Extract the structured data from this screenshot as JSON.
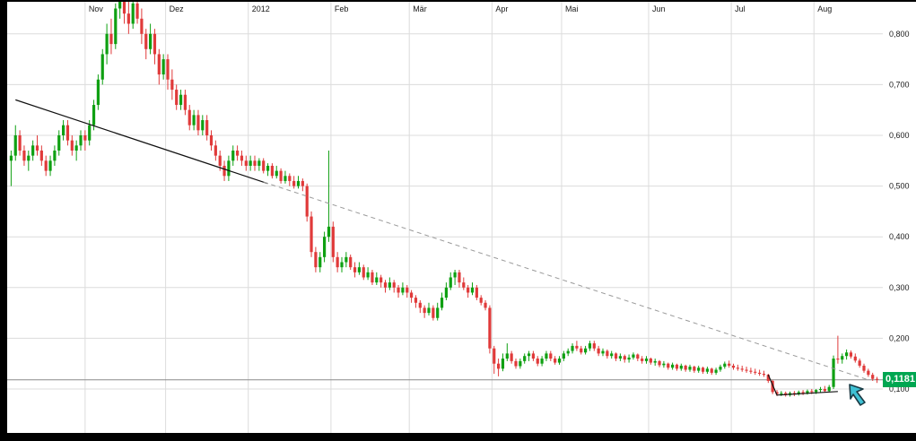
{
  "chart_data": {
    "type": "candlestick",
    "title": "",
    "xlabel": "",
    "ylabel": "",
    "grid": true,
    "legend": false,
    "y_axis": {
      "side": "right",
      "min": 0.015,
      "max": 0.865,
      "ticks": [
        0.1,
        0.2,
        0.3,
        0.4,
        0.5,
        0.6,
        0.7,
        0.8
      ],
      "tick_labels": [
        "0,100",
        "0,200",
        "0,300",
        "0,400",
        "0,500",
        "0,600",
        "0,700",
        "0,800"
      ]
    },
    "x_axis": {
      "labels": [
        {
          "label": "Nov",
          "index": 17.5
        },
        {
          "label": "Dez",
          "index": 36
        },
        {
          "label": "2012",
          "index": 55
        },
        {
          "label": "Feb",
          "index": 74
        },
        {
          "label": "Mär",
          "index": 92
        },
        {
          "label": "Apr",
          "index": 111
        },
        {
          "label": "Mai",
          "index": 127
        },
        {
          "label": "Jun",
          "index": 147
        },
        {
          "label": "Jul",
          "index": 166
        },
        {
          "label": "Aug",
          "index": 185
        }
      ]
    },
    "last_price": 0.1181,
    "last_price_label": "0,1181",
    "colors": {
      "up": "#0fa012",
      "down": "#e03a3a",
      "grid": "#dcdcdc",
      "trend_solid": "#111111",
      "trend_dashed": "#9a9a9a",
      "price_line": "#8a8a8a",
      "tag_bg": "#00a651",
      "label_text": "#1a1a1a",
      "cursor_fill": "#3fc1d4",
      "cursor_stroke": "#1a3a44"
    },
    "trendlines": [
      {
        "name": "downtrend-solid",
        "style": "solid",
        "color": "#111111",
        "width": 1.2,
        "points": [
          [
            1,
            0.67
          ],
          [
            59,
            0.505
          ]
        ]
      },
      {
        "name": "downtrend-dashed",
        "style": "dashed",
        "color": "#9a9a9a",
        "width": 1,
        "points": [
          [
            58,
            0.508
          ],
          [
            197,
            0.118
          ]
        ]
      },
      {
        "name": "support-small",
        "style": "solid",
        "color": "#111111",
        "width": 1.2,
        "points": [
          [
            174,
            0.128
          ],
          [
            176,
            0.088
          ],
          [
            190,
            0.095
          ]
        ]
      }
    ],
    "candles": [
      [
        0.55,
        0.57,
        0.5,
        0.56
      ],
      [
        0.56,
        0.62,
        0.55,
        0.6
      ],
      [
        0.6,
        0.61,
        0.56,
        0.57
      ],
      [
        0.57,
        0.58,
        0.54,
        0.55
      ],
      [
        0.55,
        0.57,
        0.53,
        0.56
      ],
      [
        0.56,
        0.59,
        0.55,
        0.58
      ],
      [
        0.58,
        0.6,
        0.56,
        0.57
      ],
      [
        0.57,
        0.58,
        0.54,
        0.55
      ],
      [
        0.55,
        0.56,
        0.52,
        0.53
      ],
      [
        0.53,
        0.56,
        0.52,
        0.55
      ],
      [
        0.55,
        0.58,
        0.54,
        0.57
      ],
      [
        0.57,
        0.61,
        0.56,
        0.6
      ],
      [
        0.6,
        0.63,
        0.59,
        0.62
      ],
      [
        0.62,
        0.63,
        0.58,
        0.59
      ],
      [
        0.59,
        0.6,
        0.56,
        0.57
      ],
      [
        0.57,
        0.59,
        0.55,
        0.58
      ],
      [
        0.58,
        0.61,
        0.57,
        0.6
      ],
      [
        0.6,
        0.61,
        0.57,
        0.59
      ],
      [
        0.59,
        0.63,
        0.58,
        0.62
      ],
      [
        0.62,
        0.67,
        0.61,
        0.66
      ],
      [
        0.66,
        0.72,
        0.65,
        0.71
      ],
      [
        0.71,
        0.77,
        0.7,
        0.76
      ],
      [
        0.76,
        0.82,
        0.74,
        0.8
      ],
      [
        0.8,
        0.83,
        0.76,
        0.78
      ],
      [
        0.78,
        0.86,
        0.77,
        0.85
      ],
      [
        0.85,
        0.9,
        0.83,
        0.88
      ],
      [
        0.88,
        0.89,
        0.82,
        0.84
      ],
      [
        0.84,
        0.87,
        0.8,
        0.82
      ],
      [
        0.82,
        0.88,
        0.81,
        0.86
      ],
      [
        0.86,
        0.88,
        0.82,
        0.83
      ],
      [
        0.83,
        0.85,
        0.78,
        0.8
      ],
      [
        0.8,
        0.81,
        0.75,
        0.77
      ],
      [
        0.77,
        0.82,
        0.76,
        0.8
      ],
      [
        0.8,
        0.81,
        0.74,
        0.76
      ],
      [
        0.76,
        0.77,
        0.7,
        0.72
      ],
      [
        0.72,
        0.76,
        0.71,
        0.75
      ],
      [
        0.75,
        0.76,
        0.69,
        0.71
      ],
      [
        0.71,
        0.73,
        0.67,
        0.69
      ],
      [
        0.69,
        0.7,
        0.65,
        0.66
      ],
      [
        0.66,
        0.69,
        0.65,
        0.68
      ],
      [
        0.68,
        0.69,
        0.64,
        0.65
      ],
      [
        0.65,
        0.66,
        0.61,
        0.62
      ],
      [
        0.62,
        0.65,
        0.61,
        0.64
      ],
      [
        0.64,
        0.65,
        0.6,
        0.61
      ],
      [
        0.61,
        0.64,
        0.6,
        0.63
      ],
      [
        0.63,
        0.64,
        0.59,
        0.6
      ],
      [
        0.6,
        0.61,
        0.57,
        0.58
      ],
      [
        0.58,
        0.59,
        0.55,
        0.56
      ],
      [
        0.56,
        0.57,
        0.53,
        0.54
      ],
      [
        0.54,
        0.55,
        0.51,
        0.52
      ],
      [
        0.52,
        0.56,
        0.51,
        0.55
      ],
      [
        0.55,
        0.58,
        0.54,
        0.57
      ],
      [
        0.57,
        0.58,
        0.55,
        0.56
      ],
      [
        0.56,
        0.57,
        0.54,
        0.55
      ],
      [
        0.55,
        0.56,
        0.53,
        0.54
      ],
      [
        0.54,
        0.56,
        0.53,
        0.55
      ],
      [
        0.55,
        0.56,
        0.53,
        0.54
      ],
      [
        0.54,
        0.555,
        0.53,
        0.55
      ],
      [
        0.55,
        0.555,
        0.525,
        0.53
      ],
      [
        0.53,
        0.545,
        0.52,
        0.54
      ],
      [
        0.54,
        0.545,
        0.515,
        0.52
      ],
      [
        0.52,
        0.54,
        0.515,
        0.53
      ],
      [
        0.53,
        0.535,
        0.505,
        0.51
      ],
      [
        0.51,
        0.53,
        0.505,
        0.52
      ],
      [
        0.52,
        0.525,
        0.5,
        0.51
      ],
      [
        0.51,
        0.52,
        0.495,
        0.5
      ],
      [
        0.5,
        0.52,
        0.495,
        0.51
      ],
      [
        0.51,
        0.515,
        0.49,
        0.5
      ],
      [
        0.5,
        0.505,
        0.43,
        0.44
      ],
      [
        0.44,
        0.45,
        0.36,
        0.37
      ],
      [
        0.37,
        0.38,
        0.33,
        0.34
      ],
      [
        0.34,
        0.37,
        0.33,
        0.36
      ],
      [
        0.36,
        0.41,
        0.35,
        0.4
      ],
      [
        0.4,
        0.57,
        0.39,
        0.42
      ],
      [
        0.42,
        0.43,
        0.35,
        0.36
      ],
      [
        0.36,
        0.37,
        0.33,
        0.34
      ],
      [
        0.34,
        0.36,
        0.33,
        0.35
      ],
      [
        0.35,
        0.37,
        0.34,
        0.36
      ],
      [
        0.36,
        0.365,
        0.335,
        0.34
      ],
      [
        0.34,
        0.35,
        0.32,
        0.33
      ],
      [
        0.33,
        0.35,
        0.325,
        0.34
      ],
      [
        0.34,
        0.345,
        0.315,
        0.32
      ],
      [
        0.32,
        0.34,
        0.315,
        0.33
      ],
      [
        0.33,
        0.335,
        0.305,
        0.31
      ],
      [
        0.31,
        0.33,
        0.305,
        0.32
      ],
      [
        0.32,
        0.325,
        0.3,
        0.31
      ],
      [
        0.31,
        0.315,
        0.29,
        0.3
      ],
      [
        0.3,
        0.32,
        0.295,
        0.31
      ],
      [
        0.31,
        0.315,
        0.29,
        0.3
      ],
      [
        0.3,
        0.305,
        0.28,
        0.29
      ],
      [
        0.29,
        0.31,
        0.285,
        0.3
      ],
      [
        0.3,
        0.305,
        0.28,
        0.29
      ],
      [
        0.29,
        0.295,
        0.27,
        0.28
      ],
      [
        0.28,
        0.285,
        0.26,
        0.27
      ],
      [
        0.27,
        0.275,
        0.25,
        0.26
      ],
      [
        0.26,
        0.265,
        0.24,
        0.25
      ],
      [
        0.25,
        0.27,
        0.245,
        0.26
      ],
      [
        0.26,
        0.265,
        0.235,
        0.24
      ],
      [
        0.24,
        0.27,
        0.235,
        0.26
      ],
      [
        0.26,
        0.29,
        0.255,
        0.28
      ],
      [
        0.28,
        0.31,
        0.275,
        0.3
      ],
      [
        0.3,
        0.33,
        0.295,
        0.32
      ],
      [
        0.32,
        0.335,
        0.305,
        0.33
      ],
      [
        0.33,
        0.335,
        0.3,
        0.31
      ],
      [
        0.31,
        0.32,
        0.295,
        0.3
      ],
      [
        0.3,
        0.305,
        0.28,
        0.29
      ],
      [
        0.29,
        0.31,
        0.285,
        0.3
      ],
      [
        0.3,
        0.305,
        0.275,
        0.28
      ],
      [
        0.28,
        0.285,
        0.265,
        0.27
      ],
      [
        0.27,
        0.275,
        0.255,
        0.26
      ],
      [
        0.26,
        0.265,
        0.17,
        0.18
      ],
      [
        0.18,
        0.185,
        0.13,
        0.15
      ],
      [
        0.15,
        0.16,
        0.125,
        0.14
      ],
      [
        0.14,
        0.17,
        0.135,
        0.16
      ],
      [
        0.16,
        0.19,
        0.155,
        0.17
      ],
      [
        0.17,
        0.175,
        0.15,
        0.155
      ],
      [
        0.155,
        0.16,
        0.14,
        0.145
      ],
      [
        0.145,
        0.16,
        0.14,
        0.155
      ],
      [
        0.155,
        0.17,
        0.15,
        0.165
      ],
      [
        0.165,
        0.175,
        0.155,
        0.17
      ],
      [
        0.17,
        0.175,
        0.155,
        0.16
      ],
      [
        0.16,
        0.165,
        0.145,
        0.15
      ],
      [
        0.15,
        0.165,
        0.145,
        0.16
      ],
      [
        0.16,
        0.175,
        0.155,
        0.17
      ],
      [
        0.17,
        0.175,
        0.155,
        0.16
      ],
      [
        0.16,
        0.165,
        0.148,
        0.152
      ],
      [
        0.152,
        0.165,
        0.148,
        0.16
      ],
      [
        0.16,
        0.175,
        0.155,
        0.17
      ],
      [
        0.17,
        0.18,
        0.165,
        0.175
      ],
      [
        0.175,
        0.19,
        0.17,
        0.185
      ],
      [
        0.185,
        0.195,
        0.175,
        0.18
      ],
      [
        0.18,
        0.185,
        0.168,
        0.172
      ],
      [
        0.172,
        0.185,
        0.168,
        0.18
      ],
      [
        0.18,
        0.195,
        0.175,
        0.19
      ],
      [
        0.19,
        0.195,
        0.175,
        0.18
      ],
      [
        0.18,
        0.185,
        0.165,
        0.17
      ],
      [
        0.17,
        0.18,
        0.165,
        0.175
      ],
      [
        0.175,
        0.178,
        0.16,
        0.165
      ],
      [
        0.165,
        0.175,
        0.16,
        0.17
      ],
      [
        0.17,
        0.172,
        0.155,
        0.16
      ],
      [
        0.16,
        0.17,
        0.155,
        0.165
      ],
      [
        0.165,
        0.168,
        0.152,
        0.158
      ],
      [
        0.158,
        0.168,
        0.152,
        0.162
      ],
      [
        0.162,
        0.172,
        0.158,
        0.168
      ],
      [
        0.168,
        0.17,
        0.155,
        0.16
      ],
      [
        0.16,
        0.165,
        0.15,
        0.155
      ],
      [
        0.155,
        0.165,
        0.15,
        0.16
      ],
      [
        0.16,
        0.162,
        0.148,
        0.152
      ],
      [
        0.152,
        0.16,
        0.146,
        0.155
      ],
      [
        0.155,
        0.157,
        0.143,
        0.147
      ],
      [
        0.147,
        0.155,
        0.142,
        0.15
      ],
      [
        0.15,
        0.152,
        0.138,
        0.142
      ],
      [
        0.142,
        0.152,
        0.138,
        0.148
      ],
      [
        0.148,
        0.15,
        0.136,
        0.14
      ],
      [
        0.14,
        0.15,
        0.136,
        0.146
      ],
      [
        0.146,
        0.148,
        0.134,
        0.138
      ],
      [
        0.138,
        0.148,
        0.134,
        0.144
      ],
      [
        0.144,
        0.146,
        0.132,
        0.136
      ],
      [
        0.136,
        0.146,
        0.132,
        0.142
      ],
      [
        0.142,
        0.144,
        0.13,
        0.134
      ],
      [
        0.134,
        0.144,
        0.13,
        0.14
      ],
      [
        0.14,
        0.142,
        0.128,
        0.132
      ],
      [
        0.132,
        0.142,
        0.128,
        0.138
      ],
      [
        0.138,
        0.148,
        0.134,
        0.144
      ],
      [
        0.144,
        0.154,
        0.14,
        0.15
      ],
      [
        0.15,
        0.156,
        0.142,
        0.146
      ],
      [
        0.146,
        0.15,
        0.138,
        0.142
      ],
      [
        0.142,
        0.148,
        0.136,
        0.14
      ],
      [
        0.14,
        0.146,
        0.134,
        0.138
      ],
      [
        0.138,
        0.144,
        0.132,
        0.136
      ],
      [
        0.136,
        0.142,
        0.13,
        0.134
      ],
      [
        0.134,
        0.14,
        0.128,
        0.132
      ],
      [
        0.132,
        0.138,
        0.126,
        0.13
      ],
      [
        0.13,
        0.136,
        0.124,
        0.128
      ],
      [
        0.128,
        0.13,
        0.112,
        0.116
      ],
      [
        0.116,
        0.118,
        0.09,
        0.094
      ],
      [
        0.094,
        0.098,
        0.086,
        0.09
      ],
      [
        0.09,
        0.096,
        0.086,
        0.092
      ],
      [
        0.092,
        0.095,
        0.085,
        0.088
      ],
      [
        0.088,
        0.095,
        0.085,
        0.092
      ],
      [
        0.092,
        0.096,
        0.086,
        0.09
      ],
      [
        0.09,
        0.097,
        0.087,
        0.094
      ],
      [
        0.094,
        0.098,
        0.088,
        0.092
      ],
      [
        0.092,
        0.099,
        0.089,
        0.096
      ],
      [
        0.096,
        0.1,
        0.09,
        0.094
      ],
      [
        0.094,
        0.1,
        0.09,
        0.098
      ],
      [
        0.098,
        0.104,
        0.092,
        0.1
      ],
      [
        0.1,
        0.106,
        0.094,
        0.096
      ],
      [
        0.096,
        0.108,
        0.094,
        0.104
      ],
      [
        0.104,
        0.166,
        0.1,
        0.16
      ],
      [
        0.16,
        0.205,
        0.15,
        0.158
      ],
      [
        0.158,
        0.17,
        0.15,
        0.165
      ],
      [
        0.165,
        0.178,
        0.158,
        0.172
      ],
      [
        0.172,
        0.176,
        0.16,
        0.164
      ],
      [
        0.164,
        0.17,
        0.152,
        0.156
      ],
      [
        0.156,
        0.16,
        0.142,
        0.146
      ],
      [
        0.146,
        0.15,
        0.132,
        0.136
      ],
      [
        0.136,
        0.14,
        0.124,
        0.128
      ],
      [
        0.128,
        0.132,
        0.116,
        0.12
      ],
      [
        0.12,
        0.124,
        0.112,
        0.1181
      ]
    ]
  },
  "price_tag": {
    "label": "0,1181"
  },
  "icons": {
    "cursor": "drag-arrow-icon"
  }
}
